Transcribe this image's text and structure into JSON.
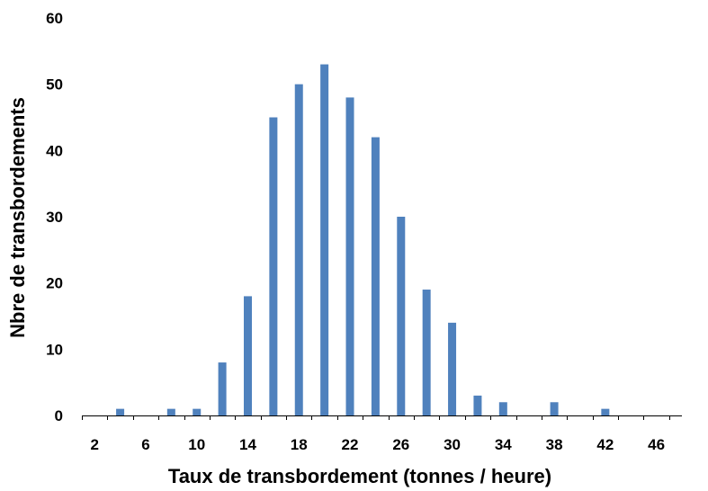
{
  "chart_data": {
    "type": "bar",
    "title": "",
    "xlabel": "Taux de transbordement (tonnes / heure)",
    "ylabel": "Nbre de transbordements",
    "x_tick_labels": [
      "2",
      "6",
      "10",
      "14",
      "18",
      "22",
      "26",
      "30",
      "34",
      "38",
      "42",
      "46"
    ],
    "y_tick_labels": [
      "0",
      "10",
      "20",
      "30",
      "40",
      "50",
      "60"
    ],
    "ylim": [
      0,
      60
    ],
    "xlim": [
      1,
      48
    ],
    "bar_color": "#4f81bd",
    "grid": false,
    "legend": "none",
    "bins": [
      {
        "x": 4,
        "count": 1
      },
      {
        "x": 8,
        "count": 1
      },
      {
        "x": 10,
        "count": 1
      },
      {
        "x": 12,
        "count": 8
      },
      {
        "x": 14,
        "count": 18
      },
      {
        "x": 16,
        "count": 45
      },
      {
        "x": 18,
        "count": 50
      },
      {
        "x": 20,
        "count": 53
      },
      {
        "x": 22,
        "count": 48
      },
      {
        "x": 24,
        "count": 42
      },
      {
        "x": 26,
        "count": 30
      },
      {
        "x": 28,
        "count": 19
      },
      {
        "x": 30,
        "count": 14
      },
      {
        "x": 32,
        "count": 3
      },
      {
        "x": 34,
        "count": 2
      },
      {
        "x": 38,
        "count": 2
      },
      {
        "x": 42,
        "count": 1
      }
    ]
  }
}
